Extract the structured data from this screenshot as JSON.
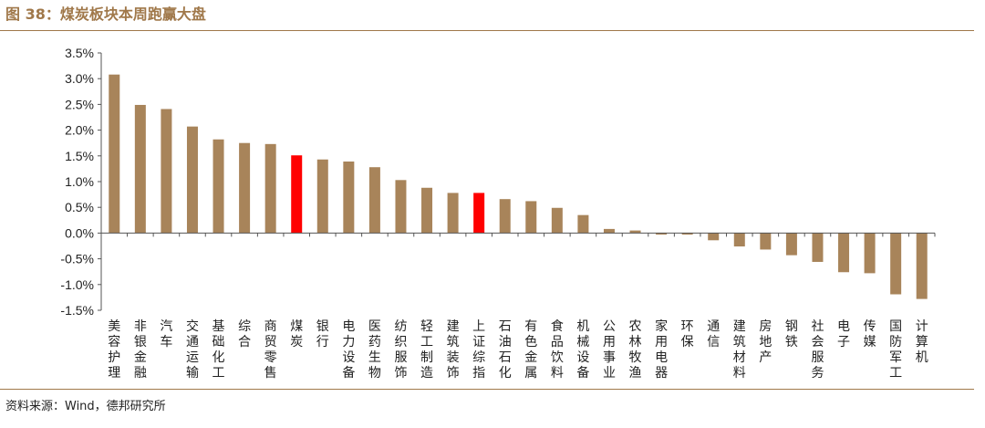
{
  "header": {
    "title": "图 38：煤炭板块本周跑赢大盘"
  },
  "footer": {
    "source": "资料来源：Wind，德邦研究所"
  },
  "colors": {
    "bar": "#a8845a",
    "highlight": "#ff0000",
    "accent": "#a0784a"
  },
  "chart_data": {
    "type": "bar",
    "title": "",
    "xlabel": "",
    "ylabel": "",
    "ylim": [
      -1.5,
      3.5
    ],
    "yticks": [
      3.5,
      3.0,
      2.5,
      2.0,
      1.5,
      1.0,
      0.5,
      0.0,
      -0.5,
      -1.0,
      -1.5
    ],
    "ytick_labels": [
      "3.5%",
      "3.0%",
      "2.5%",
      "2.0%",
      "1.5%",
      "1.0%",
      "0.5%",
      "0.0%",
      "-0.5%",
      "-1.0%",
      "-1.5%"
    ],
    "categories": [
      "美容护理",
      "非银金融",
      "汽车",
      "交通运输",
      "基础化工",
      "综合",
      "商贸零售",
      "煤炭",
      "银行",
      "电力设备",
      "医药生物",
      "纺织服饰",
      "轻工制造",
      "建筑装饰",
      "上证综指",
      "石油石化",
      "有色金属",
      "食品饮料",
      "机械设备",
      "公用事业",
      "农林牧渔",
      "家用电器",
      "环保",
      "通信",
      "建筑材料",
      "房地产",
      "钢铁",
      "社会服务",
      "电子",
      "传媒",
      "国防军工",
      "计算机"
    ],
    "values": [
      3.08,
      2.49,
      2.41,
      2.07,
      1.82,
      1.75,
      1.73,
      1.51,
      1.43,
      1.39,
      1.28,
      1.03,
      0.88,
      0.78,
      0.78,
      0.66,
      0.62,
      0.49,
      0.35,
      0.08,
      0.05,
      -0.03,
      -0.03,
      -0.14,
      -0.26,
      -0.32,
      -0.43,
      -0.56,
      -0.76,
      -0.78,
      -1.19,
      -1.28
    ],
    "highlighted": [
      "煤炭",
      "上证综指"
    ],
    "grid": false,
    "legend": "none"
  }
}
